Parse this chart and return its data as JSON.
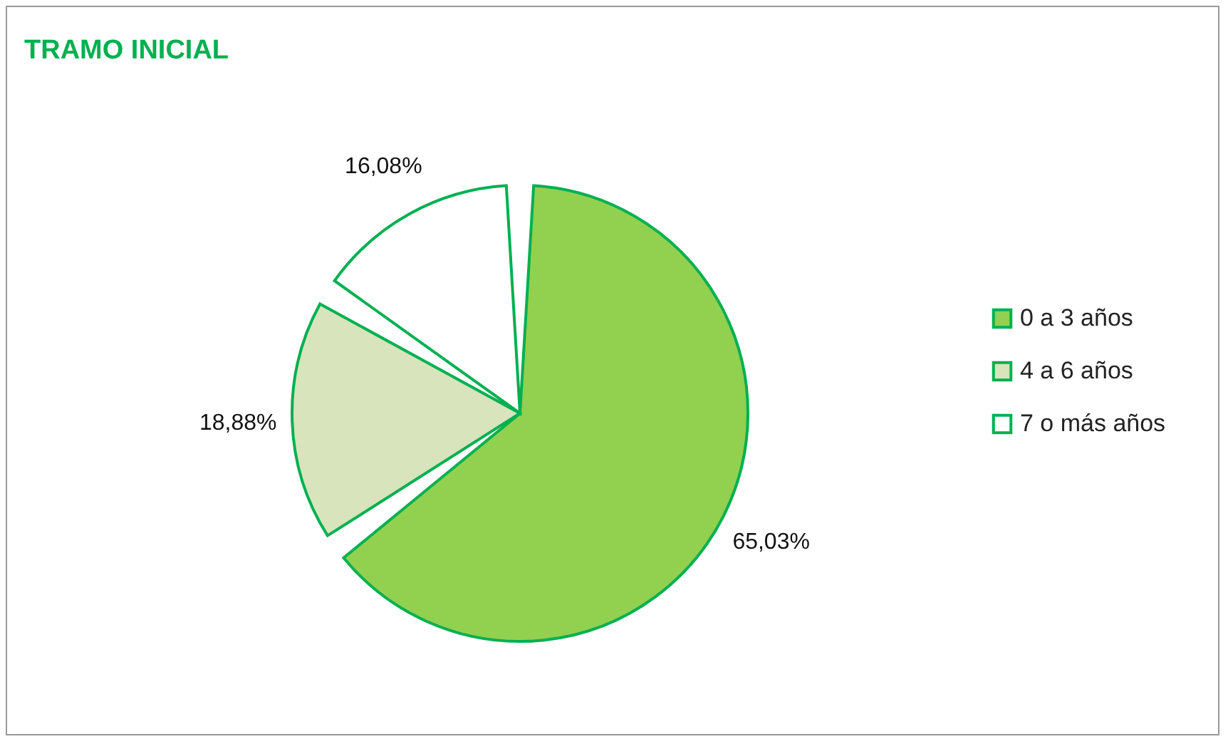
{
  "chart_data": {
    "type": "pie",
    "title": "TRAMO INICIAL",
    "categories": [
      "0 a 3 años",
      "4 a 6 años",
      "7  o más años"
    ],
    "values": [
      65.03,
      18.88,
      16.08
    ],
    "colors": [
      "#92d050",
      "#d7e4bc",
      "#ffffff"
    ],
    "value_labels": [
      "65,03%",
      "18,88%",
      "16,08%"
    ],
    "legend": "right"
  }
}
